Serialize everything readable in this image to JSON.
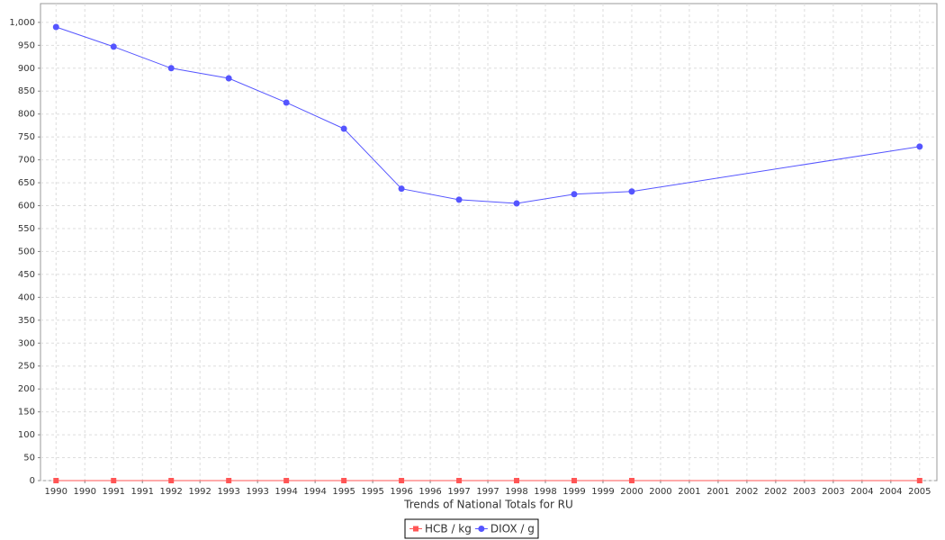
{
  "chart_data": {
    "type": "line",
    "xlabel": "Trends of National Totals for RU",
    "x": [
      1990,
      1991,
      1992,
      1993,
      1994,
      1995,
      1996,
      1997,
      1998,
      1999,
      2000,
      2005
    ],
    "series": [
      {
        "name": "HCB / kg",
        "color": "#ff5555",
        "marker": "square",
        "values": [
          0,
          0,
          0,
          0,
          0,
          0,
          0,
          0,
          0,
          0,
          0,
          0
        ]
      },
      {
        "name": "DIOX / g",
        "color": "#5555ff",
        "marker": "circle",
        "values": [
          990,
          947,
          900,
          878,
          825,
          768,
          637,
          613,
          605,
          625,
          631,
          729
        ]
      }
    ],
    "xlim": [
      1989.73,
      2005.3
    ],
    "xticks": [
      1990,
      {
        "value": 1990.5,
        "label": "1990"
      },
      1991,
      {
        "value": 1991.5,
        "label": "1991"
      },
      1992,
      {
        "value": 1992.5,
        "label": "1992"
      },
      1993,
      {
        "value": 1993.5,
        "label": "1993"
      },
      1994,
      {
        "value": 1994.5,
        "label": "1994"
      },
      1995,
      {
        "value": 1995.5,
        "label": "1995"
      },
      1996,
      {
        "value": 1996.5,
        "label": "1996"
      },
      1997,
      {
        "value": 1997.5,
        "label": "1997"
      },
      1998,
      {
        "value": 1998.5,
        "label": "1998"
      },
      1999,
      {
        "value": 1999.5,
        "label": "1999"
      },
      2000,
      {
        "value": 2000.5,
        "label": "2000"
      },
      2001,
      {
        "value": 2001.5,
        "label": "2001"
      },
      2002,
      {
        "value": 2002.5,
        "label": "2002"
      },
      2003,
      {
        "value": 2003.5,
        "label": "2003"
      },
      2004,
      {
        "value": 2004.5,
        "label": "2004"
      },
      2005
    ],
    "ylim": [
      0,
      1041
    ],
    "yticks": [
      0,
      50,
      100,
      150,
      200,
      250,
      300,
      350,
      400,
      450,
      500,
      550,
      600,
      650,
      700,
      750,
      800,
      850,
      900,
      950,
      {
        "value": 1000,
        "label": "1,000"
      }
    ],
    "grid": true
  }
}
